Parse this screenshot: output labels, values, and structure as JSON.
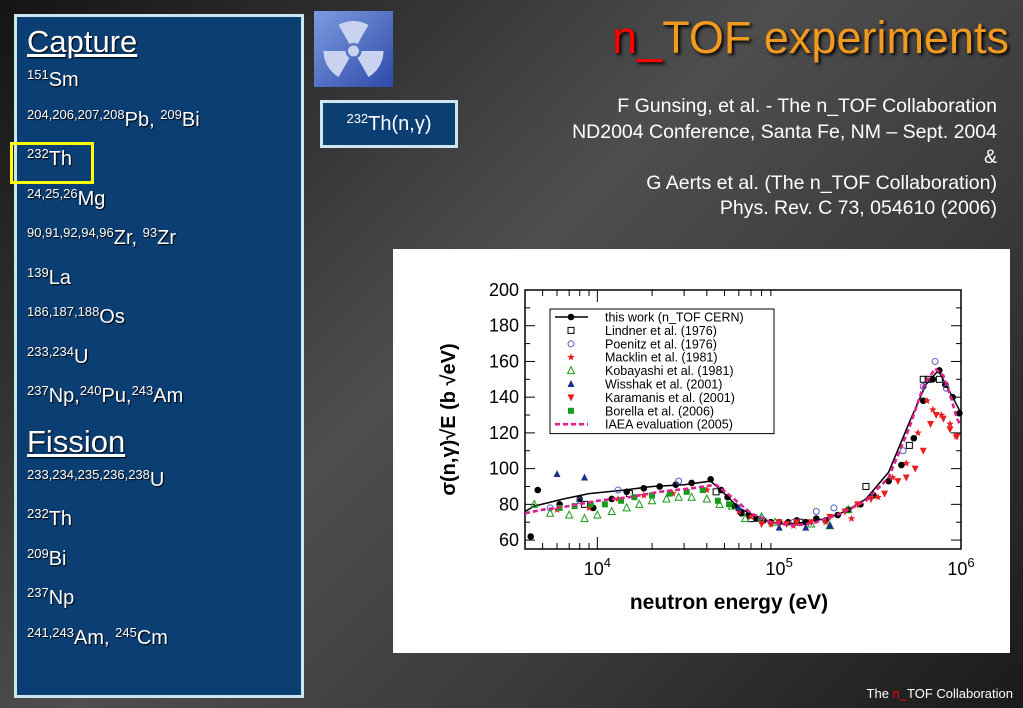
{
  "sidebar": {
    "capture_title": "Capture",
    "capture": [
      {
        "sup": "151",
        "t": "Sm"
      },
      {
        "sup": "204,206,207,208",
        "t": "Pb, ",
        "sup2": "209",
        "t2": "Bi"
      },
      {
        "sup": "232",
        "t": "Th"
      },
      {
        "sup": "24,25,26",
        "t": "Mg"
      },
      {
        "sup": "90,91,92,94,96",
        "t": "Zr, ",
        "sup2": "93",
        "t2": "Zr"
      },
      {
        "sup": "139",
        "t": "La"
      },
      {
        "sup": "186,187,188",
        "t": "Os"
      },
      {
        "sup": "233,234",
        "t": "U"
      },
      {
        "sup": "237",
        "t": "Np,",
        "sup2": "240",
        "t2": "Pu,",
        "sup3": "243",
        "t3": "Am"
      }
    ],
    "fission_title": "Fission",
    "fission": [
      {
        "sup": "233,234,235,236,238",
        "t": "U"
      },
      {
        "sup": "232",
        "t": "Th"
      },
      {
        "sup": "209",
        "t": "Bi"
      },
      {
        "sup": "237",
        "t": "Np"
      },
      {
        "sup": "241,243",
        "t": "Am, ",
        "sup2": "245",
        "t2": "Cm"
      }
    ]
  },
  "title": {
    "part1": "n_",
    "part2": "TOF experiments"
  },
  "reaction_box": {
    "sup": "232",
    "text": "Th(n,γ)"
  },
  "references": [
    "F Gunsing, et al. - The n_TOF Collaboration",
    "ND2004 Conference, Santa Fe, NM – Sept. 2004",
    "&",
    "G Aerts et al. (The n_TOF Collaboration)",
    "Phys. Rev. C 73, 054610 (2006)"
  ],
  "footer": {
    "pre": "The ",
    "red": "n_",
    "post": "TOF Collaboration"
  },
  "colors": {
    "sidebar_bg": "#0b3e73",
    "highlight": "#ffff00",
    "title_red": "#ff0000",
    "title_orange": "#f29a1f"
  },
  "chart_data": {
    "type": "scatter",
    "xlabel": "neutron energy (eV)",
    "ylabel": "σ(n,γ)√E  (b √eV)",
    "xscale": "log",
    "xlim": [
      4000,
      1000000
    ],
    "ylim": [
      55,
      200
    ],
    "yticks": [
      60,
      80,
      100,
      120,
      140,
      160,
      180,
      200
    ],
    "xticks": [
      {
        "v": 10000,
        "label": "10^4"
      },
      {
        "v": 100000,
        "label": "10^5"
      },
      {
        "v": 1000000,
        "label": "10^6"
      }
    ],
    "legend_position": "top-left",
    "series": [
      {
        "name": "this work (n_TOF CERN)",
        "marker": "filled-circle",
        "color": "#000000",
        "line": true,
        "x": [
          4000,
          4500,
          6500,
          9000,
          14000,
          20000,
          30000,
          42000,
          50000,
          60000,
          75000,
          90000,
          110000,
          140000,
          180000,
          230000,
          300000,
          400000,
          520000,
          640000,
          750000,
          900000,
          1000000
        ],
        "y": [
          76,
          79,
          83,
          86,
          88,
          90,
          91,
          93,
          86,
          78,
          73,
          70,
          69,
          70,
          72,
          76,
          83,
          98,
          126,
          147,
          155,
          140,
          131
        ],
        "points": [
          [
            4300,
            62
          ],
          [
            4700,
            88
          ],
          [
            6200,
            80
          ],
          [
            8000,
            83
          ],
          [
            9500,
            78
          ],
          [
            12000,
            83
          ],
          [
            14500,
            87
          ],
          [
            18000,
            89
          ],
          [
            22000,
            90
          ],
          [
            27000,
            91
          ],
          [
            33000,
            92
          ],
          [
            42000,
            94
          ],
          [
            48000,
            88
          ],
          [
            52000,
            84
          ],
          [
            57000,
            79
          ],
          [
            62000,
            75
          ],
          [
            68000,
            74
          ],
          [
            75000,
            72
          ],
          [
            82000,
            71
          ],
          [
            90000,
            70
          ],
          [
            100000,
            70
          ],
          [
            112000,
            70
          ],
          [
            125000,
            71
          ],
          [
            140000,
            70
          ],
          [
            160000,
            72
          ],
          [
            180000,
            71
          ],
          [
            210000,
            74
          ],
          [
            240000,
            77
          ],
          [
            280000,
            80
          ],
          [
            330000,
            85
          ],
          [
            400000,
            93
          ],
          [
            470000,
            102
          ],
          [
            550000,
            117
          ],
          [
            620000,
            138
          ],
          [
            700000,
            150
          ],
          [
            760000,
            155
          ],
          [
            820000,
            147
          ],
          [
            900000,
            140
          ],
          [
            980000,
            131
          ]
        ]
      },
      {
        "name": "Lindner et al. (1976)",
        "marker": "open-square",
        "color": "#000000",
        "points": [
          [
            8500,
            80
          ],
          [
            15000,
            86
          ],
          [
            45000,
            87
          ],
          [
            70000,
            72
          ],
          [
            130000,
            70
          ],
          [
            300000,
            90
          ],
          [
            520000,
            113
          ],
          [
            620000,
            150
          ],
          [
            660000,
            150
          ],
          [
            760000,
            150
          ]
        ]
      },
      {
        "name": "Poenitz et al. (1976)",
        "marker": "open-circle",
        "color": "#4a5fc1",
        "points": [
          [
            5500,
            78
          ],
          [
            8000,
            82
          ],
          [
            13000,
            88
          ],
          [
            28000,
            93
          ],
          [
            80000,
            72
          ],
          [
            120000,
            70
          ],
          [
            160000,
            76
          ],
          [
            200000,
            78
          ],
          [
            480000,
            110
          ],
          [
            620000,
            146
          ],
          [
            720000,
            160
          ],
          [
            830000,
            145
          ]
        ]
      },
      {
        "name": "Macklin et al. (1981)",
        "marker": "star",
        "color": "#e82020",
        "points": [
          [
            6000,
            77
          ],
          [
            9000,
            78
          ],
          [
            13000,
            83
          ],
          [
            18000,
            85
          ],
          [
            26000,
            86
          ],
          [
            40000,
            88
          ],
          [
            60000,
            76
          ],
          [
            70000,
            73
          ],
          [
            90000,
            69
          ],
          [
            120000,
            68
          ],
          [
            180000,
            70
          ],
          [
            250000,
            72
          ],
          [
            350000,
            84
          ],
          [
            420000,
            95
          ],
          [
            500000,
            103
          ],
          [
            580000,
            120
          ],
          [
            650000,
            138
          ],
          [
            700000,
            133
          ],
          [
            780000,
            130
          ],
          [
            870000,
            125
          ],
          [
            940000,
            118
          ]
        ]
      },
      {
        "name": "Kobayashi et al. (1981)",
        "marker": "open-triangle",
        "color": "#1a9a1a",
        "points": [
          [
            4500,
            80
          ],
          [
            5500,
            75
          ],
          [
            7000,
            74
          ],
          [
            8500,
            72
          ],
          [
            10000,
            74
          ],
          [
            12000,
            76
          ],
          [
            14500,
            78
          ],
          [
            17000,
            80
          ],
          [
            20000,
            82
          ],
          [
            24000,
            83
          ],
          [
            28000,
            84
          ],
          [
            33000,
            84
          ],
          [
            40000,
            83
          ],
          [
            47000,
            80
          ],
          [
            55000,
            79
          ],
          [
            65000,
            72
          ],
          [
            80000,
            73
          ],
          [
            95000,
            70
          ],
          [
            150000,
            69
          ],
          [
            190000,
            68
          ],
          [
            240000,
            77
          ]
        ]
      },
      {
        "name": "Wisshak et al. (2001)",
        "marker": "filled-triangle",
        "color": "#1c2f8a",
        "points": [
          [
            6000,
            97
          ],
          [
            8500,
            95
          ],
          [
            60000,
            78
          ],
          [
            100000,
            67
          ],
          [
            140000,
            67
          ],
          [
            190000,
            68
          ]
        ]
      },
      {
        "name": "Karamanis et al. (2001)",
        "marker": "triangle-down",
        "color": "#e82020",
        "points": [
          [
            80000,
            69
          ],
          [
            90000,
            69
          ],
          [
            100000,
            70
          ],
          [
            110000,
            69
          ],
          [
            125000,
            70
          ],
          [
            150000,
            70
          ],
          [
            190000,
            73
          ],
          [
            230000,
            76
          ],
          [
            270000,
            80
          ],
          [
            320000,
            83
          ],
          [
            380000,
            86
          ],
          [
            450000,
            93
          ],
          [
            500000,
            95
          ],
          [
            560000,
            100
          ],
          [
            620000,
            110
          ],
          [
            680000,
            125
          ],
          [
            730000,
            130
          ],
          [
            800000,
            128
          ],
          [
            870000,
            122
          ],
          [
            950000,
            118
          ]
        ]
      },
      {
        "name": "Borella et al. (2006)",
        "marker": "filled-square",
        "color": "#1a9a1a",
        "points": [
          [
            6200,
            78
          ],
          [
            7500,
            79
          ],
          [
            9200,
            80
          ],
          [
            11000,
            80
          ],
          [
            13500,
            82
          ],
          [
            16000,
            84
          ],
          [
            20000,
            85
          ],
          [
            25000,
            86
          ],
          [
            31000,
            87
          ],
          [
            38000,
            88
          ],
          [
            46000,
            82
          ],
          [
            53000,
            80
          ]
        ]
      },
      {
        "name": "IAEA evaluation (2005)",
        "style": "dashed-line",
        "color": "#e0208e",
        "x": [
          4000,
          5000,
          7000,
          10000,
          15000,
          22000,
          33000,
          45000,
          55000,
          70000,
          90000,
          120000,
          160000,
          220000,
          300000,
          400000,
          520000,
          620000,
          720000,
          800000,
          880000,
          950000,
          1000000
        ],
        "y": [
          75,
          77,
          79,
          82,
          84,
          87,
          89,
          91,
          84,
          75,
          70,
          68,
          70,
          75,
          82,
          95,
          123,
          146,
          156,
          152,
          140,
          128,
          124
        ]
      }
    ]
  }
}
